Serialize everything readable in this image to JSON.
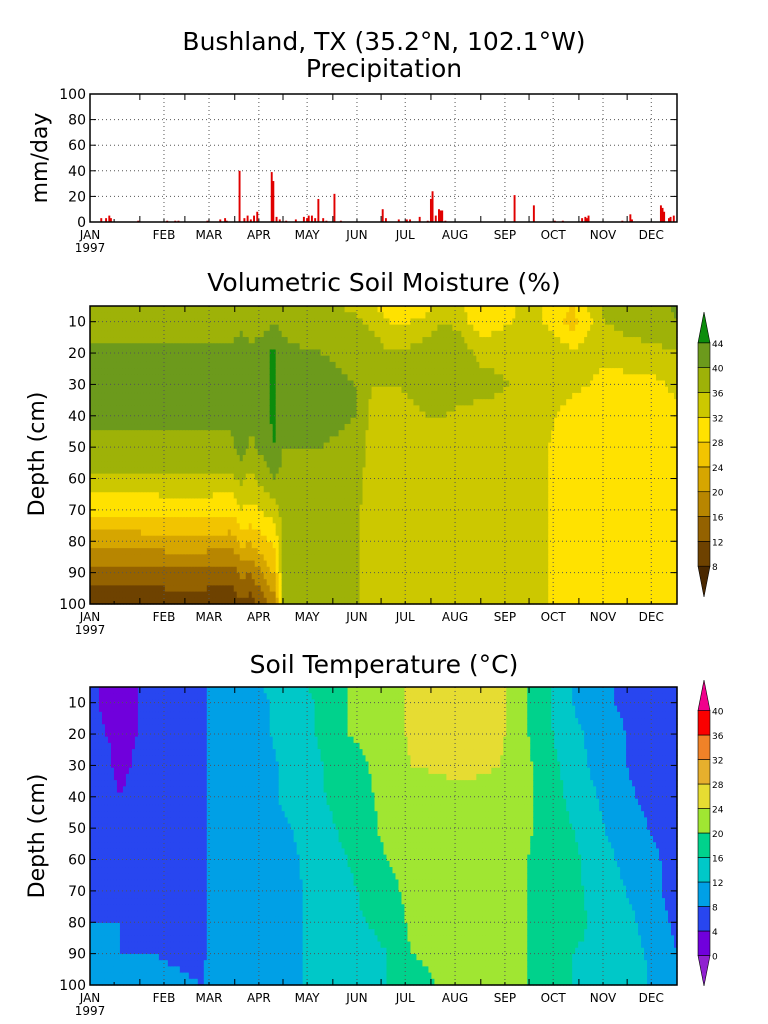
{
  "figure": {
    "title_line1": "Bushland, TX  (35.2°N, 102.1°W)"
  },
  "chart_data": [
    {
      "id": "precip",
      "type": "bar",
      "title": "Precipitation",
      "ylabel": "mm/day",
      "ylim": [
        0,
        100
      ],
      "yticks": [
        0,
        20,
        40,
        60,
        80,
        100
      ],
      "xlim_days": [
        0,
        365
      ],
      "month_labels": [
        "JAN",
        "FEB",
        "MAR",
        "APR",
        "MAY",
        "JUN",
        "JUL",
        "AUG",
        "SEP",
        "OCT",
        "NOV",
        "DEC"
      ],
      "year_label": "1997",
      "grid": true,
      "bar_color": "#e00000",
      "points": [
        {
          "day": 7,
          "value": 3
        },
        {
          "day": 10,
          "value": 3
        },
        {
          "day": 12,
          "value": 5
        },
        {
          "day": 13,
          "value": 3
        },
        {
          "day": 30,
          "value": 1
        },
        {
          "day": 48,
          "value": 1
        },
        {
          "day": 53,
          "value": 1
        },
        {
          "day": 55,
          "value": 1
        },
        {
          "day": 73,
          "value": 1
        },
        {
          "day": 81,
          "value": 2
        },
        {
          "day": 84,
          "value": 3
        },
        {
          "day": 85,
          "value": 1
        },
        {
          "day": 93,
          "value": 40
        },
        {
          "day": 96,
          "value": 3
        },
        {
          "day": 98,
          "value": 5
        },
        {
          "day": 100,
          "value": 2
        },
        {
          "day": 102,
          "value": 5
        },
        {
          "day": 104,
          "value": 8
        },
        {
          "day": 113,
          "value": 39
        },
        {
          "day": 114,
          "value": 32
        },
        {
          "day": 116,
          "value": 4
        },
        {
          "day": 118,
          "value": 2
        },
        {
          "day": 122,
          "value": 1
        },
        {
          "day": 128,
          "value": 2
        },
        {
          "day": 133,
          "value": 4
        },
        {
          "day": 135,
          "value": 3
        },
        {
          "day": 136,
          "value": 5
        },
        {
          "day": 138,
          "value": 5
        },
        {
          "day": 140,
          "value": 3
        },
        {
          "day": 142,
          "value": 18
        },
        {
          "day": 145,
          "value": 3
        },
        {
          "day": 147,
          "value": 1
        },
        {
          "day": 152,
          "value": 22
        },
        {
          "day": 156,
          "value": 1
        },
        {
          "day": 182,
          "value": 10
        },
        {
          "day": 184,
          "value": 3
        },
        {
          "day": 192,
          "value": 2
        },
        {
          "day": 197,
          "value": 2
        },
        {
          "day": 199,
          "value": 2
        },
        {
          "day": 205,
          "value": 4
        },
        {
          "day": 210,
          "value": 1
        },
        {
          "day": 212,
          "value": 18
        },
        {
          "day": 213,
          "value": 24
        },
        {
          "day": 215,
          "value": 5
        },
        {
          "day": 217,
          "value": 10
        },
        {
          "day": 218,
          "value": 9
        },
        {
          "day": 219,
          "value": 9
        },
        {
          "day": 221,
          "value": 1
        },
        {
          "day": 264,
          "value": 21
        },
        {
          "day": 276,
          "value": 13
        },
        {
          "day": 289,
          "value": 1
        },
        {
          "day": 294,
          "value": 1
        },
        {
          "day": 306,
          "value": 3
        },
        {
          "day": 308,
          "value": 4
        },
        {
          "day": 309,
          "value": 3
        },
        {
          "day": 310,
          "value": 5
        },
        {
          "day": 331,
          "value": 1
        },
        {
          "day": 336,
          "value": 6
        },
        {
          "day": 337,
          "value": 2
        },
        {
          "day": 355,
          "value": 13
        },
        {
          "day": 356,
          "value": 11
        },
        {
          "day": 357,
          "value": 8
        },
        {
          "day": 360,
          "value": 3
        },
        {
          "day": 361,
          "value": 4
        },
        {
          "day": 363,
          "value": 5
        }
      ]
    },
    {
      "id": "moisture",
      "type": "heatmap",
      "title": "Volumetric Soil Moisture (%)",
      "ylabel": "Depth (cm)",
      "ylim": [
        100,
        5
      ],
      "yticks": [
        10,
        20,
        30,
        40,
        50,
        60,
        70,
        80,
        90,
        100
      ],
      "xlim_days": [
        0,
        365
      ],
      "month_labels": [
        "JAN",
        "FEB",
        "MAR",
        "APR",
        "MAY",
        "JUN",
        "JUL",
        "AUG",
        "SEP",
        "OCT",
        "NOV",
        "DEC"
      ],
      "year_label": "1997",
      "grid": true,
      "colorbar_levels": [
        8,
        12,
        16,
        20,
        24,
        28,
        32,
        36,
        40,
        44
      ],
      "colorbar_colors": [
        "#4a2800",
        "#6e4200",
        "#946200",
        "#b88600",
        "#d6a600",
        "#f2c400",
        "#ffe200",
        "#ccc800",
        "#9eb208",
        "#6c9a1c",
        "#0c8c0c"
      ],
      "depth_samples": [
        5,
        10,
        15,
        20,
        30,
        40,
        50,
        60,
        70,
        80,
        90,
        100
      ],
      "profiles": [
        {
          "day": 0,
          "values": [
            37,
            37,
            39,
            41,
            41,
            41,
            39,
            35,
            29,
            22,
            14,
            9
          ]
        },
        {
          "day": 30,
          "values": [
            37,
            37,
            39,
            41,
            41,
            41,
            39,
            35,
            29,
            22,
            14,
            9
          ]
        },
        {
          "day": 60,
          "values": [
            37,
            37,
            39,
            41,
            41,
            41,
            39,
            35,
            30,
            23,
            15,
            10
          ]
        },
        {
          "day": 88,
          "values": [
            37,
            37,
            39,
            41,
            41,
            41,
            39,
            35,
            29,
            22,
            14,
            9
          ]
        },
        {
          "day": 94,
          "values": [
            38,
            39,
            41,
            42,
            44,
            44,
            42,
            37,
            32,
            25,
            17,
            11
          ]
        },
        {
          "day": 100,
          "values": [
            37,
            37,
            39,
            41,
            41,
            41,
            39,
            35,
            31,
            25,
            16,
            10
          ]
        },
        {
          "day": 115,
          "values": [
            38,
            40,
            42,
            45,
            45,
            45,
            44,
            40,
            34,
            29,
            25,
            18
          ]
        },
        {
          "day": 120,
          "values": [
            37,
            38,
            40,
            41,
            41,
            41,
            40,
            39,
            38,
            37,
            36,
            36
          ]
        },
        {
          "day": 145,
          "values": [
            37,
            37,
            38,
            40,
            41,
            41,
            40,
            39,
            39,
            39,
            38,
            38
          ]
        },
        {
          "day": 165,
          "values": [
            35,
            37,
            38,
            39,
            40,
            40,
            39,
            38,
            37,
            37,
            37,
            37
          ]
        },
        {
          "day": 175,
          "values": [
            32,
            35,
            37,
            37,
            36,
            35,
            34,
            34,
            34,
            34,
            34,
            34
          ]
        },
        {
          "day": 190,
          "values": [
            30,
            31,
            34,
            36,
            36,
            35,
            34,
            34,
            34,
            34,
            34,
            34
          ]
        },
        {
          "day": 210,
          "values": [
            31,
            33,
            36,
            38,
            37,
            36,
            34,
            34,
            34,
            34,
            34,
            34
          ]
        },
        {
          "day": 220,
          "values": [
            34,
            36,
            40,
            39,
            37,
            36,
            34,
            34,
            34,
            34,
            34,
            34
          ]
        },
        {
          "day": 245,
          "values": [
            30,
            29,
            32,
            35,
            37,
            35,
            34,
            34,
            34,
            34,
            34,
            34
          ]
        },
        {
          "day": 275,
          "values": [
            33,
            34,
            36,
            36,
            35,
            35,
            34,
            34,
            34,
            34,
            34,
            34
          ]
        },
        {
          "day": 300,
          "values": [
            28,
            26,
            30,
            33,
            33,
            30,
            29,
            29,
            29,
            29,
            29,
            29
          ]
        },
        {
          "day": 320,
          "values": [
            37,
            36,
            35,
            33,
            31,
            30,
            29,
            29,
            29,
            29,
            29,
            29
          ]
        },
        {
          "day": 350,
          "values": [
            38,
            38,
            37,
            34,
            31,
            30,
            30,
            30,
            30,
            29,
            29,
            29
          ]
        },
        {
          "day": 365,
          "values": [
            41,
            40,
            39,
            36,
            33,
            31,
            30,
            30,
            30,
            30,
            29,
            29
          ]
        }
      ]
    },
    {
      "id": "temperature",
      "type": "heatmap",
      "title": "Soil Temperature (°C)",
      "ylabel": "Depth (cm)",
      "ylim": [
        100,
        5
      ],
      "yticks": [
        10,
        20,
        30,
        40,
        50,
        60,
        70,
        80,
        90,
        100
      ],
      "xlim_days": [
        0,
        365
      ],
      "month_labels": [
        "JAN",
        "FEB",
        "MAR",
        "APR",
        "MAY",
        "JUN",
        "JUL",
        "AUG",
        "SEP",
        "OCT",
        "NOV",
        "DEC"
      ],
      "year_label": "1997",
      "grid": true,
      "colorbar_levels": [
        0,
        4,
        8,
        12,
        16,
        20,
        24,
        28,
        32,
        36,
        40
      ],
      "colorbar_colors": [
        "#9020d0",
        "#7000dc",
        "#2846f0",
        "#00a0e6",
        "#00c8c8",
        "#00d28c",
        "#a0e632",
        "#e6dc32",
        "#e6af2d",
        "#f08228",
        "#fa0000",
        "#f0008c"
      ],
      "depth_samples": [
        5,
        10,
        20,
        30,
        40,
        50,
        60,
        70,
        80,
        90,
        100
      ],
      "profiles": [
        {
          "day": 0,
          "values": [
            5,
            5,
            6,
            6,
            6,
            7,
            7,
            7,
            8,
            8,
            9
          ]
        },
        {
          "day": 10,
          "values": [
            3,
            3,
            4,
            5,
            6,
            6,
            7,
            7,
            8,
            9,
            9
          ]
        },
        {
          "day": 18,
          "values": [
            3,
            3,
            3,
            3,
            4,
            5,
            7,
            7,
            8,
            8,
            9
          ]
        },
        {
          "day": 40,
          "values": [
            5,
            5,
            5,
            6,
            6,
            6,
            6,
            7,
            7,
            8,
            9
          ]
        },
        {
          "day": 70,
          "values": [
            5,
            6,
            6,
            6,
            6,
            6,
            6,
            7,
            7,
            7,
            8
          ]
        },
        {
          "day": 72,
          "values": [
            8,
            8,
            8,
            8,
            8,
            8,
            8,
            8,
            8,
            8,
            9
          ]
        },
        {
          "day": 100,
          "values": [
            11,
            11,
            11,
            10,
            10,
            10,
            10,
            10,
            10,
            10,
            11
          ]
        },
        {
          "day": 125,
          "values": [
            14,
            13,
            13,
            13,
            13,
            12,
            11,
            11,
            11,
            11,
            11
          ]
        },
        {
          "day": 140,
          "values": [
            17,
            16,
            16,
            15,
            15,
            14,
            14,
            13,
            13,
            13,
            13
          ]
        },
        {
          "day": 160,
          "values": [
            20,
            20,
            20,
            19,
            18,
            17,
            16,
            15,
            15,
            14,
            14
          ]
        },
        {
          "day": 185,
          "values": [
            22,
            22,
            21,
            21,
            21,
            21,
            20,
            19,
            17,
            16,
            16
          ]
        },
        {
          "day": 200,
          "values": [
            25,
            25,
            25,
            24,
            22,
            21,
            21,
            21,
            21,
            20,
            19
          ]
        },
        {
          "day": 230,
          "values": [
            25,
            25,
            25,
            25,
            23,
            22,
            22,
            22,
            22,
            21,
            21
          ]
        },
        {
          "day": 255,
          "values": [
            25,
            25,
            25,
            24,
            23,
            22,
            22,
            22,
            22,
            21,
            21
          ]
        },
        {
          "day": 265,
          "values": [
            22,
            22,
            22,
            22,
            22,
            22,
            21,
            21,
            21,
            21,
            21
          ]
        },
        {
          "day": 280,
          "values": [
            18,
            18,
            18,
            19,
            19,
            19,
            19,
            19,
            19,
            19,
            19
          ]
        },
        {
          "day": 300,
          "values": [
            12,
            12,
            13,
            14,
            15,
            16,
            17,
            17,
            17,
            16,
            16
          ]
        },
        {
          "day": 320,
          "values": [
            9,
            9,
            10,
            10,
            11,
            12,
            13,
            14,
            15,
            15,
            15
          ]
        },
        {
          "day": 340,
          "values": [
            6,
            6,
            7,
            7,
            8,
            9,
            10,
            11,
            12,
            13,
            13
          ]
        },
        {
          "day": 355,
          "values": [
            5,
            5,
            5,
            6,
            6,
            7,
            8,
            8,
            9,
            10,
            11
          ]
        },
        {
          "day": 365,
          "values": [
            4,
            4,
            5,
            5,
            6,
            6,
            7,
            7,
            7,
            8,
            9
          ]
        }
      ]
    }
  ]
}
